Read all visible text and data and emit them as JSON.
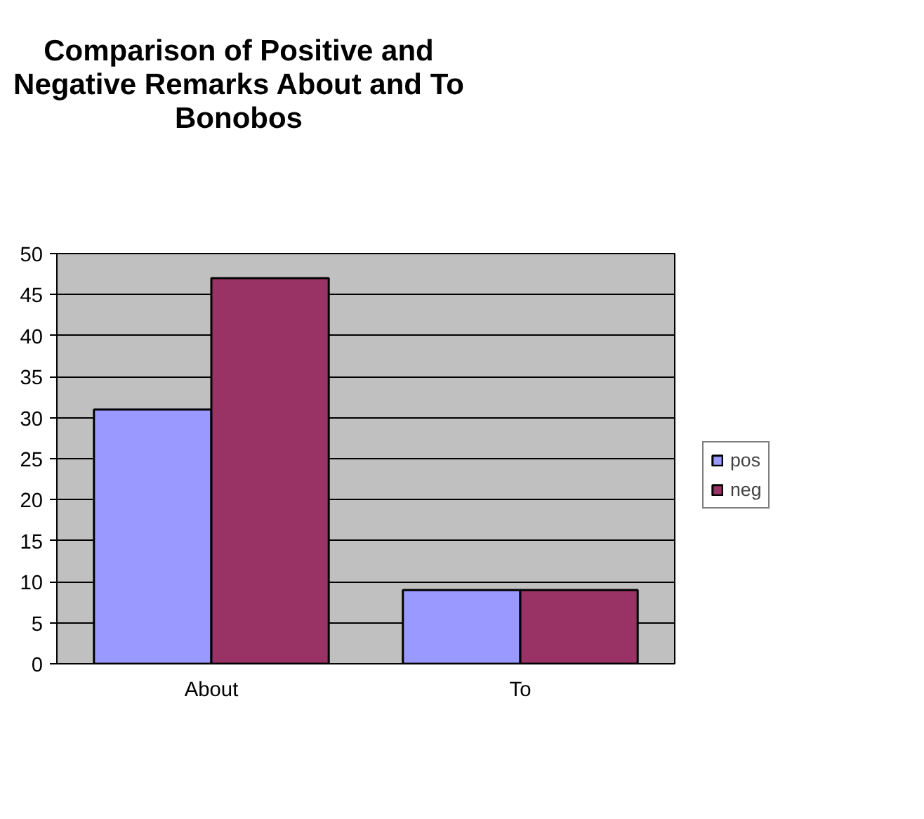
{
  "chart_data": {
    "type": "bar",
    "title": "Comparison of Positive and Negative Remarks About and To Bonobos",
    "categories": [
      "About",
      "To"
    ],
    "series": [
      {
        "name": "pos",
        "color": "#9999ff",
        "values": [
          31,
          9
        ]
      },
      {
        "name": "neg",
        "color": "#993366",
        "values": [
          47,
          9
        ]
      }
    ],
    "ylim": [
      0,
      50
    ],
    "yticks": [
      0,
      5,
      10,
      15,
      20,
      25,
      30,
      35,
      40,
      45,
      50
    ],
    "grid": "y",
    "legend": "right"
  }
}
